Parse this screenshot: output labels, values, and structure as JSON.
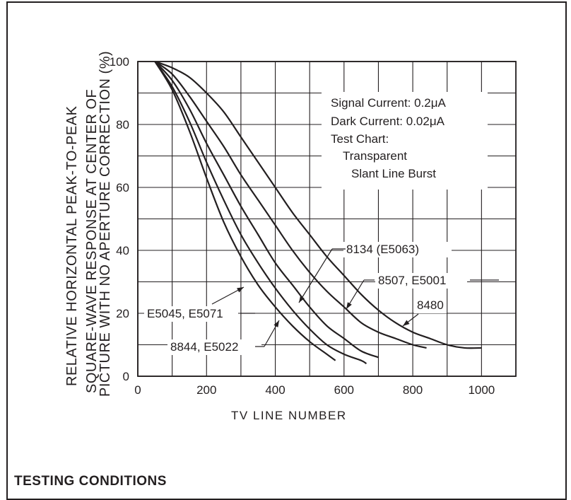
{
  "chart_data": {
    "type": "line",
    "xlabel": "TV LINE NUMBER",
    "ylabel_lines": [
      "RELATIVE HORIZONTAL PEAK-TO-PEAK",
      "SQUARE-WAVE RESPONSE AT CENTER OF",
      "PICTURE WITH NO APERTURE CORRECTION (%)"
    ],
    "xlim": [
      0,
      1100
    ],
    "ylim": [
      0,
      100
    ],
    "x_ticks": [
      "0",
      "200",
      "400",
      "600",
      "800",
      "1000"
    ],
    "y_ticks": [
      "0",
      "20",
      "40",
      "60",
      "80",
      "100"
    ],
    "grid": true,
    "series": [
      {
        "name": "E5045, E5071",
        "x": [
          50,
          100,
          150,
          200,
          250,
          300,
          350,
          400,
          450,
          500,
          550,
          575
        ],
        "y": [
          100,
          91,
          78,
          63,
          49,
          38,
          29,
          22,
          16,
          11,
          7,
          5
        ]
      },
      {
        "name": "8844, E5022",
        "x": [
          50,
          100,
          150,
          200,
          250,
          300,
          350,
          400,
          450,
          500,
          550,
          600,
          650,
          665
        ],
        "y": [
          100,
          92,
          81,
          68,
          56,
          45,
          36,
          28,
          21,
          15,
          10,
          7,
          5,
          4
        ]
      },
      {
        "name": "8134 (E5063)",
        "x": [
          50,
          100,
          150,
          200,
          250,
          300,
          350,
          400,
          450,
          500,
          550,
          600,
          650,
          700
        ],
        "y": [
          100,
          94,
          85,
          74,
          64,
          54,
          45,
          36,
          29,
          22,
          16,
          12,
          8,
          6
        ]
      },
      {
        "name": "8507, E5001",
        "x": [
          50,
          100,
          150,
          200,
          250,
          300,
          350,
          400,
          450,
          500,
          550,
          600,
          650,
          700,
          750,
          800,
          840
        ],
        "y": [
          100,
          96,
          89,
          81,
          73,
          64,
          56,
          48,
          40,
          33,
          27,
          22,
          17,
          14,
          12,
          10,
          9
        ]
      },
      {
        "name": "8480",
        "x": [
          50,
          100,
          150,
          200,
          250,
          300,
          350,
          400,
          450,
          500,
          550,
          600,
          650,
          700,
          750,
          800,
          850,
          900,
          950,
          1000
        ],
        "y": [
          100,
          98,
          95,
          90,
          84,
          76,
          68,
          60,
          52,
          45,
          38,
          32,
          26,
          21,
          17,
          14,
          12,
          10,
          9,
          9
        ]
      }
    ],
    "legend_box": {
      "signal_current": "Signal Current: 0.2μA",
      "dark_current": "Dark Current: 0.02μA",
      "test_chart": "Test Chart:",
      "test_chart_line1": "Transparent",
      "test_chart_line2": "Slant Line Burst"
    }
  },
  "footer": {
    "title": "TESTING CONDITIONS"
  }
}
